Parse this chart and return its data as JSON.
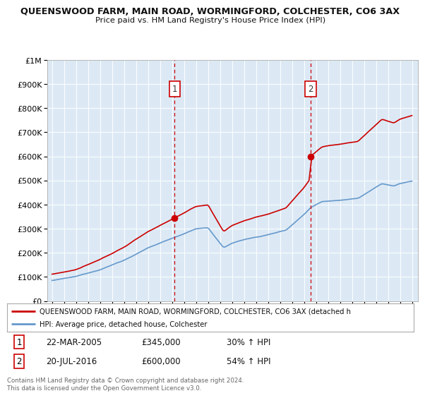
{
  "title1": "QUEENSWOOD FARM, MAIN ROAD, WORMINGFORD, COLCHESTER, CO6 3AX",
  "title2": "Price paid vs. HM Land Registry's House Price Index (HPI)",
  "ylim": [
    0,
    1000000
  ],
  "xlim_start": 1994.6,
  "xlim_end": 2025.5,
  "background_color": "#dce9f5",
  "red_line_color": "#cc0000",
  "blue_line_color": "#6699cc",
  "grid_color": "#ffffff",
  "sale1_year": 2005.22,
  "sale1_price": 345000,
  "sale1_label": "1",
  "sale2_year": 2016.55,
  "sale2_price": 600000,
  "sale2_label": "2",
  "legend_red": "QUEENSWOOD FARM, MAIN ROAD, WORMINGFORD, COLCHESTER, CO6 3AX (detached h",
  "legend_blue": "HPI: Average price, detached house, Colchester",
  "footnote": "Contains HM Land Registry data © Crown copyright and database right 2024.\nThis data is licensed under the Open Government Licence v3.0.",
  "table_rows": [
    {
      "num": "1",
      "date": "22-MAR-2005",
      "price": "£345,000",
      "hpi": "30% ↑ HPI"
    },
    {
      "num": "2",
      "date": "20-JUL-2016",
      "price": "£600,000",
      "hpi": "54% ↑ HPI"
    }
  ],
  "yticks": [
    0,
    100000,
    200000,
    300000,
    400000,
    500000,
    600000,
    700000,
    800000,
    900000,
    1000000
  ],
  "ytick_labels": [
    "£0",
    "£100K",
    "£200K",
    "£300K",
    "£400K",
    "£500K",
    "£600K",
    "£700K",
    "£800K",
    "£900K",
    "£1M"
  ]
}
